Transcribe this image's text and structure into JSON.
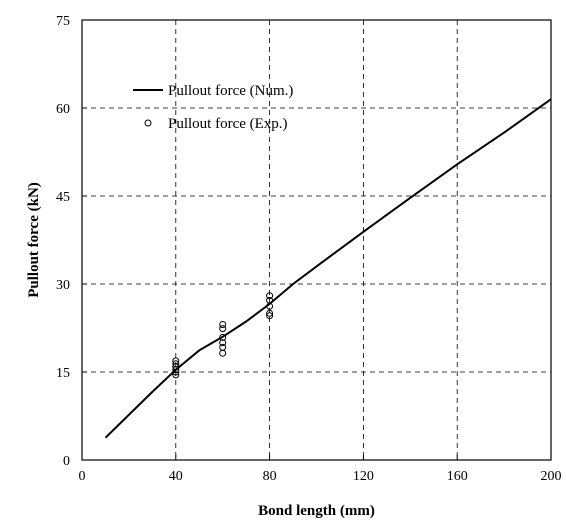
{
  "chart_data": {
    "type": "line",
    "title": "",
    "xlabel": "Bond length (mm)",
    "ylabel": "Pullout force (kN)",
    "xlim": [
      0,
      200
    ],
    "ylim": [
      0,
      75
    ],
    "x_ticks": [
      0,
      40,
      80,
      120,
      160,
      200
    ],
    "y_ticks": [
      0,
      15,
      30,
      45,
      60,
      75
    ],
    "grid": true,
    "legend_position": "top-left",
    "series": [
      {
        "name": "Pullout force (Num.)",
        "style": "line",
        "color": "#000000",
        "points": [
          {
            "x": 10,
            "y": 3.8
          },
          {
            "x": 20,
            "y": 7.7
          },
          {
            "x": 30,
            "y": 11.6
          },
          {
            "x": 40,
            "y": 15.4
          },
          {
            "x": 50,
            "y": 18.7
          },
          {
            "x": 60,
            "y": 21.0
          },
          {
            "x": 70,
            "y": 23.6
          },
          {
            "x": 80,
            "y": 26.6
          },
          {
            "x": 90,
            "y": 30.0
          },
          {
            "x": 100,
            "y": 33.0
          },
          {
            "x": 120,
            "y": 38.9
          },
          {
            "x": 140,
            "y": 44.7
          },
          {
            "x": 160,
            "y": 50.4
          },
          {
            "x": 180,
            "y": 55.8
          },
          {
            "x": 200,
            "y": 61.5
          }
        ]
      },
      {
        "name": "Pullout force (Exp.)",
        "style": "markers",
        "marker": "open-circle",
        "color": "#000000",
        "points": [
          {
            "x": 40,
            "y": 14.5
          },
          {
            "x": 40,
            "y": 15.0
          },
          {
            "x": 40,
            "y": 15.4
          },
          {
            "x": 40,
            "y": 15.9
          },
          {
            "x": 40,
            "y": 16.4
          },
          {
            "x": 40,
            "y": 16.9
          },
          {
            "x": 60,
            "y": 18.2
          },
          {
            "x": 60,
            "y": 19.2
          },
          {
            "x": 60,
            "y": 20.0
          },
          {
            "x": 60,
            "y": 20.9
          },
          {
            "x": 60,
            "y": 22.4
          },
          {
            "x": 60,
            "y": 23.1
          },
          {
            "x": 80,
            "y": 24.6
          },
          {
            "x": 80,
            "y": 25.0
          },
          {
            "x": 80,
            "y": 26.2
          },
          {
            "x": 80,
            "y": 27.2
          },
          {
            "x": 80,
            "y": 28.0
          }
        ]
      }
    ]
  }
}
